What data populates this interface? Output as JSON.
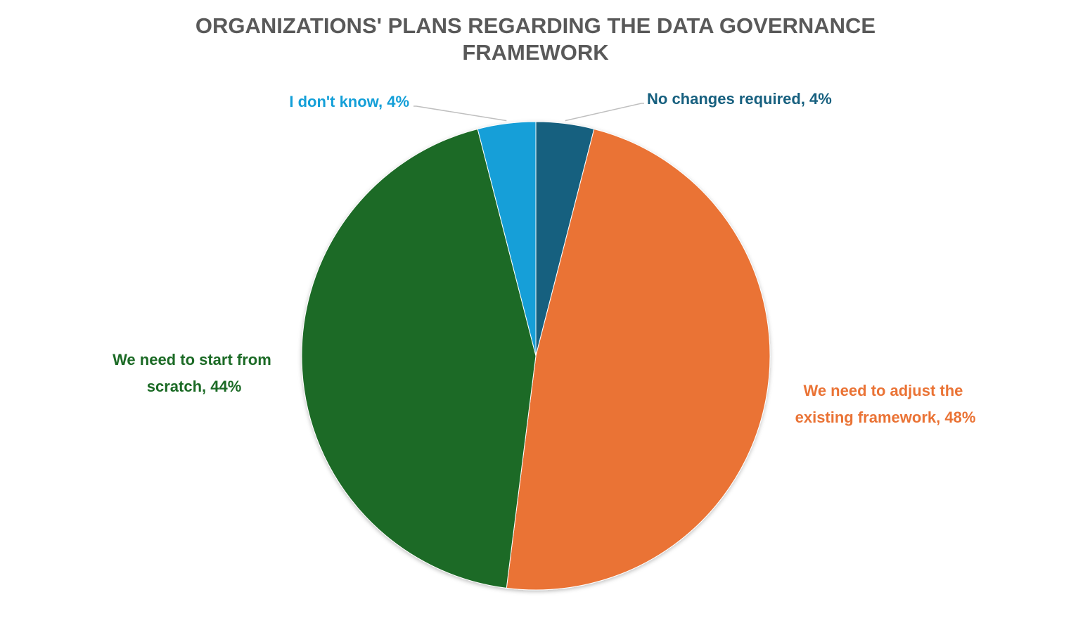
{
  "chart_data": {
    "type": "pie",
    "title": "ORGANIZATIONS' PLANS REGARDING THE DATA GOVERNANCE FRAMEWORK",
    "title_lines": [
      "ORGANIZATIONS' PLANS REGARDING THE DATA GOVERNANCE",
      "FRAMEWORK"
    ],
    "start_angle": "12 o'clock",
    "direction": "clockwise",
    "slices": [
      {
        "label": "No changes required",
        "value": 4,
        "label_text": "No changes required, 4%",
        "color": "#17607f"
      },
      {
        "label": "We need to adjust the existing framework",
        "value": 48,
        "label_lines": [
          "We need to adjust the",
          "existing framework, 48%"
        ],
        "color": "#ea7335"
      },
      {
        "label": "We need to start from scratch",
        "value": 44,
        "label_lines": [
          "We need to start from",
          "scratch, 44%"
        ],
        "color": "#1b6a25"
      },
      {
        "label": "I don't know",
        "value": 4,
        "label_text": "I don't know, 4%",
        "color": "#139fd8"
      }
    ],
    "legend": "none",
    "label_line_color": "#bfbfbf"
  }
}
